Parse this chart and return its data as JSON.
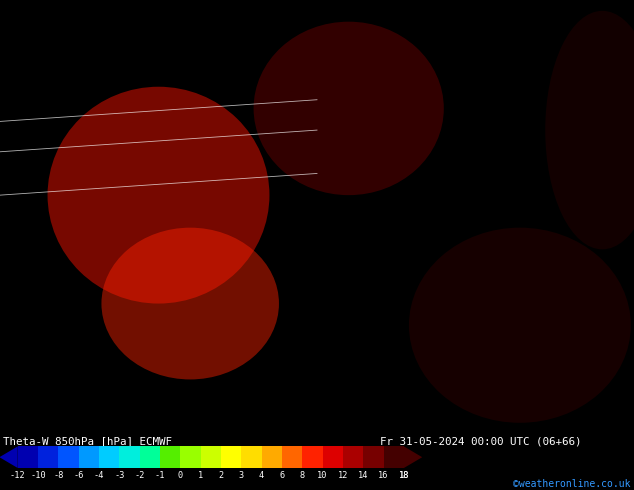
{
  "title_left": "Theta-W 850hPa [hPa] ECMWF",
  "title_right": "Fr 31-05-2024 00:00 UTC (06+66)",
  "credit": "©weatheronline.co.uk",
  "colorbar_values": [
    -12,
    -10,
    -8,
    -6,
    -4,
    -3,
    -2,
    -1,
    0,
    1,
    2,
    3,
    4,
    6,
    8,
    10,
    12,
    14,
    16,
    18
  ],
  "colorbar_colors": [
    "#0000b0",
    "#0022dd",
    "#0055ff",
    "#0099ff",
    "#00ccff",
    "#00eedd",
    "#00ff99",
    "#55ee00",
    "#99ff00",
    "#ccff00",
    "#ffff00",
    "#ffdd00",
    "#ffaa00",
    "#ff6600",
    "#ff2200",
    "#dd0000",
    "#aa0000",
    "#770000",
    "#440000"
  ],
  "bg_color": "#000000",
  "map_bg_color": "#cc0000",
  "fig_width": 6.34,
  "fig_height": 4.9,
  "bottom_bar_height": 0.115
}
